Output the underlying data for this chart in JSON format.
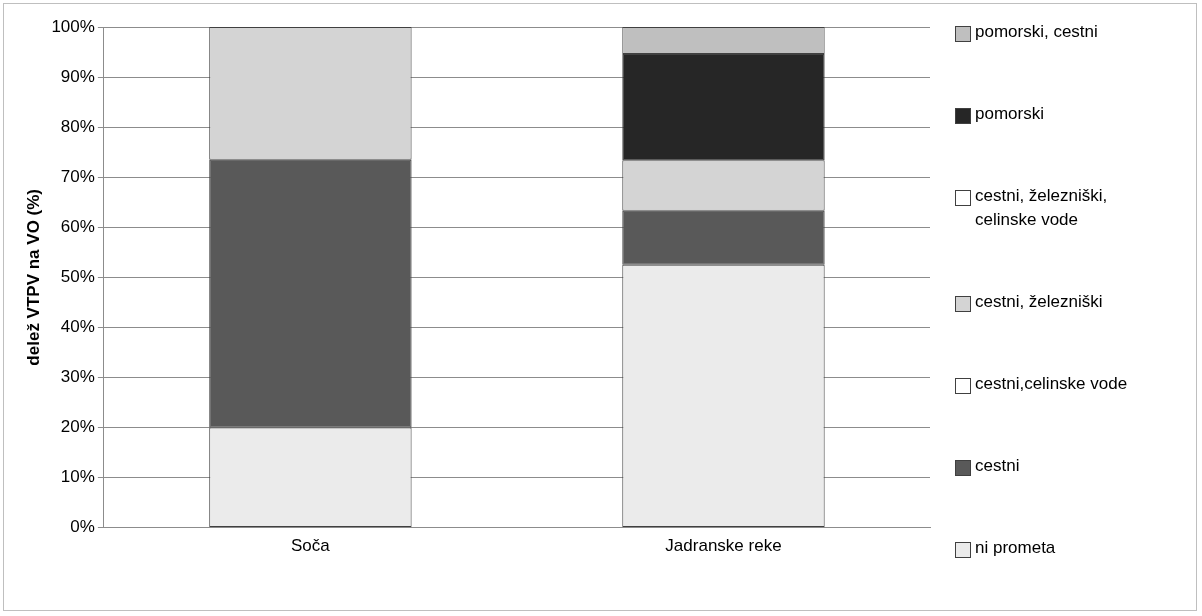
{
  "chart_data": {
    "type": "bar",
    "stacked": true,
    "ylabel": "delež VTPV na VO (%)",
    "categories": [
      "Soča",
      "Jadranske reke"
    ],
    "ylim": [
      0,
      100
    ],
    "yticks": [
      {
        "value": 0,
        "label": "0%"
      },
      {
        "value": 10,
        "label": "10%"
      },
      {
        "value": 20,
        "label": "20%"
      },
      {
        "value": 30,
        "label": "30%"
      },
      {
        "value": 40,
        "label": "40%"
      },
      {
        "value": 50,
        "label": "50%"
      },
      {
        "value": 60,
        "label": "60%"
      },
      {
        "value": 70,
        "label": "70%"
      },
      {
        "value": 80,
        "label": "80%"
      },
      {
        "value": 90,
        "label": "90%"
      },
      {
        "value": 100,
        "label": "100%"
      }
    ],
    "grid": "y",
    "legend": "right",
    "series": [
      {
        "name": "ni prometa",
        "color": "#ebebeb",
        "values": [
          20,
          52.5
        ]
      },
      {
        "name": "cestni",
        "color": "#595959",
        "values": [
          53.5,
          10.8
        ]
      },
      {
        "name": "cestni,celinske vode",
        "color": "#ffffff",
        "values": [
          0,
          0
        ]
      },
      {
        "name": "cestni, železniški",
        "color": "#d4d4d4",
        "values": [
          26.5,
          10.1
        ]
      },
      {
        "name": "cestni, železniški, celinske vode",
        "color": "#ffffff",
        "values": [
          0,
          0
        ]
      },
      {
        "name": "pomorski",
        "color": "#262626",
        "values": [
          0,
          21.2
        ]
      },
      {
        "name": "pomorski, cestni",
        "color": "#bfbfbf",
        "values": [
          0,
          5.4
        ]
      }
    ]
  }
}
